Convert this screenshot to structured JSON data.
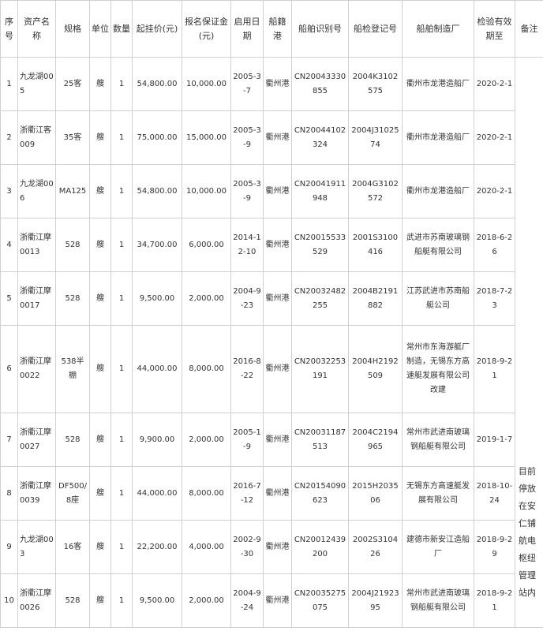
{
  "table": {
    "header": [
      "序号",
      "资产名称",
      "规格",
      "单位",
      "数量",
      "起挂价(元)",
      "报名保证金(元)",
      "启用日期",
      "船籍港",
      "船舶识别号",
      "船检登记号",
      "船舶制造厂",
      "检验有效期至",
      "备注"
    ],
    "rows": [
      [
        "1",
        "九龙湖005",
        "25客",
        "艘",
        "1",
        "54,800.00",
        "10,000.00",
        "2005-3-7",
        "衢州港",
        "CN20043330855",
        "2004K3102575",
        "衢州市龙港造船厂",
        "2020-2-1"
      ],
      [
        "2",
        "浙衢江客009",
        "35客",
        "艘",
        "1",
        "75,000.00",
        "15,000.00",
        "2005-3-9",
        "衢州港",
        "CN20044102324",
        "2004J3102574",
        "衢州市龙港造船厂",
        "2020-2-1"
      ],
      [
        "3",
        "九龙湖006",
        "MA125",
        "艘",
        "1",
        "54,800.00",
        "10,000.00",
        "2005-3-9",
        "衢州港",
        "CN20041911948",
        "2004G3102572",
        "衢州市龙港造船厂",
        "2020-2-1"
      ],
      [
        "4",
        "浙衢江摩0013",
        "528",
        "艘",
        "1",
        "34,700.00",
        "6,000.00",
        "2014-12-10",
        "衢州港",
        "CN20015533529",
        "2001S3100416",
        "武进市苏南玻璃钢船艇有限公司",
        "2018-6-26"
      ],
      [
        "5",
        "浙衢江摩0017",
        "528",
        "艘",
        "1",
        "9,500.00",
        "2,000.00",
        "2004-9-23",
        "衢州港",
        "CN20032482255",
        "2004B2191882",
        "江苏武进市苏南船艇公司",
        "2018-7-23"
      ],
      [
        "6",
        "浙衢江摩0022",
        "538半棚",
        "艘",
        "1",
        "44,000.00",
        "8,000.00",
        "2016-8-22",
        "衢州港",
        "CN20032253191",
        "2004H2192509",
        "常州市东海游艇厂制造，无锡东方高速艇发展有限公司改建",
        "2018-9-21"
      ],
      [
        "7",
        "浙衢江摩0027",
        "528",
        "艘",
        "1",
        "9,900.00",
        "2,000.00",
        "2005-1-9",
        "衢州港",
        "CN20031187513",
        "2004C2194965",
        "常州市武进南玻璃钢船艇有限公司",
        "2019-1-7"
      ],
      [
        "8",
        "浙衢江摩0039",
        "DF500/8座",
        "艘",
        "1",
        "44,000.00",
        "8,000.00",
        "2016-7-12",
        "衢州港",
        "CN20154090623",
        "2015H203506",
        "无锡东方高速艇发展有限公司",
        "2018-10-24"
      ],
      [
        "9",
        "九龙湖003",
        "16客",
        "艘",
        "1",
        "22,200.00",
        "4,000.00",
        "2002-9-30",
        "衢州港",
        "CN20012439200",
        "2002S310426",
        "建德市新安江造船厂",
        "2018-9-29"
      ],
      [
        "10",
        "浙衢江摩0026",
        "528",
        "艘",
        "1",
        "9,500.00",
        "2,000.00",
        "2004-9-24",
        "衢州港",
        "CN20035275075",
        "2004J2192395",
        "常州市武进南玻璃钢船艇有限公司",
        "2018-9-21"
      ]
    ],
    "remark": "目前停放在安仁铺航电枢纽管理站内"
  }
}
